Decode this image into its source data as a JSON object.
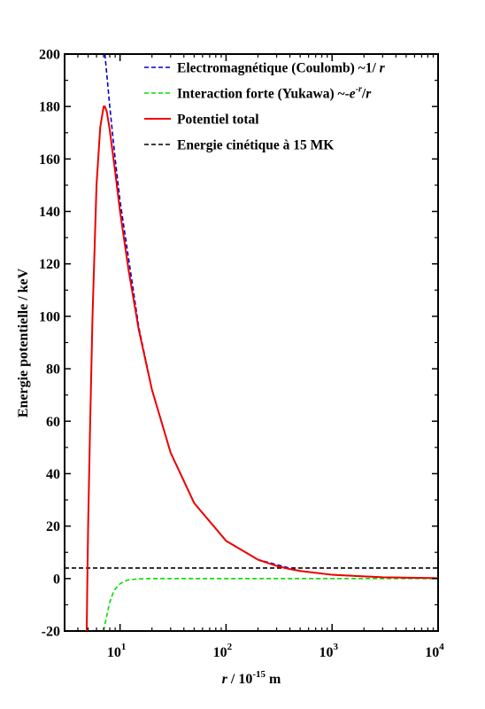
{
  "chart_data": {
    "type": "line",
    "xscale": "log",
    "xlim": [
      3,
      10000
    ],
    "ylim": [
      -20,
      200
    ],
    "grid": false,
    "legend_position": "top-right",
    "xlabel_parts": {
      "italic": "r",
      "rest": " / 10",
      "exp": "-15",
      "unit": " m"
    },
    "ylabel": "Energie potentielle / keV",
    "yticks": [
      -20,
      0,
      20,
      40,
      60,
      80,
      100,
      120,
      140,
      160,
      180,
      200
    ],
    "ytick_labels": [
      "-20",
      "0",
      "20",
      "40",
      "60",
      "80",
      "100",
      "120",
      "140",
      "160",
      "180",
      "200"
    ],
    "xticks": [
      {
        "value": 10,
        "base": "10",
        "exp": "1"
      },
      {
        "value": 100,
        "base": "10",
        "exp": "2"
      },
      {
        "value": 1000,
        "base": "10",
        "exp": "3"
      },
      {
        "value": 10000,
        "base": "10",
        "exp": "4"
      }
    ],
    "legend": [
      {
        "key": "coulomb",
        "label": "Electromagnétique (Coulomb) ~1/ ",
        "label_italic": "r"
      },
      {
        "key": "yukawa",
        "label": "Interaction forte (Yukawa) ~-",
        "label_italic": "e",
        "label_sup": "-r",
        "label_tail": "/",
        "label_italic2": "r"
      },
      {
        "key": "total",
        "label": "Potentiel total"
      },
      {
        "key": "kinetic",
        "label": "Energie cinétique à 15 MK"
      }
    ],
    "series": [
      {
        "key": "coulomb",
        "color": "#0000cc",
        "dash": "dashed",
        "x": [
          7.2,
          8,
          9,
          10,
          15,
          20,
          30,
          50,
          100,
          200,
          500,
          1000,
          3000,
          10000
        ],
        "y": [
          200,
          180,
          160,
          144,
          96,
          72,
          48,
          28.8,
          14.4,
          7.2,
          2.9,
          1.44,
          0.48,
          0.14
        ]
      },
      {
        "key": "yukawa",
        "color": "#00dd00",
        "dash": "dashed",
        "x": [
          7.0,
          7.5,
          8,
          8.5,
          9,
          10,
          11,
          12,
          15,
          20,
          100,
          10000
        ],
        "y": [
          -20,
          -14,
          -9,
          -6,
          -4,
          -2,
          -1,
          -0.5,
          -0.1,
          0,
          0,
          0
        ]
      },
      {
        "key": "total",
        "color": "#ee0000",
        "dash": "solid",
        "x": [
          4.85,
          4.9,
          5.0,
          5.2,
          5.5,
          6.0,
          6.5,
          7.0,
          7.2,
          7.5,
          8,
          9,
          10,
          12,
          15,
          20,
          30,
          50,
          100,
          200,
          300,
          400,
          500,
          1000,
          3000,
          10000
        ],
        "y": [
          -20,
          -5,
          20,
          55,
          100,
          150,
          172,
          180,
          180,
          178,
          171,
          155,
          140,
          118,
          95,
          72,
          48,
          28.8,
          14.4,
          7.2,
          4.8,
          3.6,
          2.9,
          1.44,
          0.48,
          0.14
        ]
      },
      {
        "key": "kinetic",
        "color": "#000000",
        "dash": "dashed",
        "x": [
          3,
          10000
        ],
        "y": [
          4,
          4
        ]
      }
    ]
  }
}
